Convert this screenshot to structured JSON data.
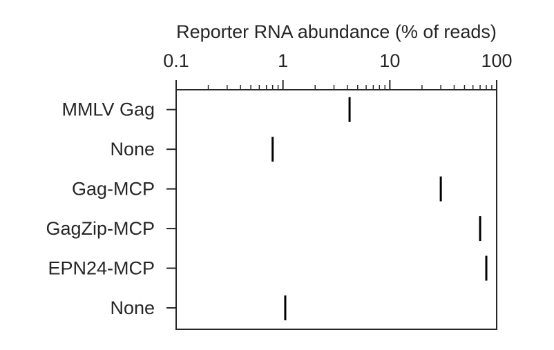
{
  "chart_data": {
    "type": "scatter",
    "title": "",
    "xlabel": "Reporter RNA abundance (% of reads)",
    "ylabel": "",
    "xscale": "log",
    "xlim": [
      0.1,
      100
    ],
    "x_axis_position": "top",
    "grid": false,
    "legend": "none",
    "marker": "vertical-tick",
    "x_ticks": [
      0.1,
      1,
      10,
      100
    ],
    "x_tick_labels": [
      "0.1",
      "1",
      "10",
      "100"
    ],
    "categories": [
      "MMLV Gag",
      "None",
      "Gag-MCP",
      "GagZip-MCP",
      "EPN24-MCP",
      "None"
    ],
    "values": [
      4.2,
      0.8,
      30,
      70,
      80,
      1.05
    ],
    "colors": {
      "axis": "#262626",
      "marker": "#000000",
      "background": "#ffffff"
    }
  }
}
